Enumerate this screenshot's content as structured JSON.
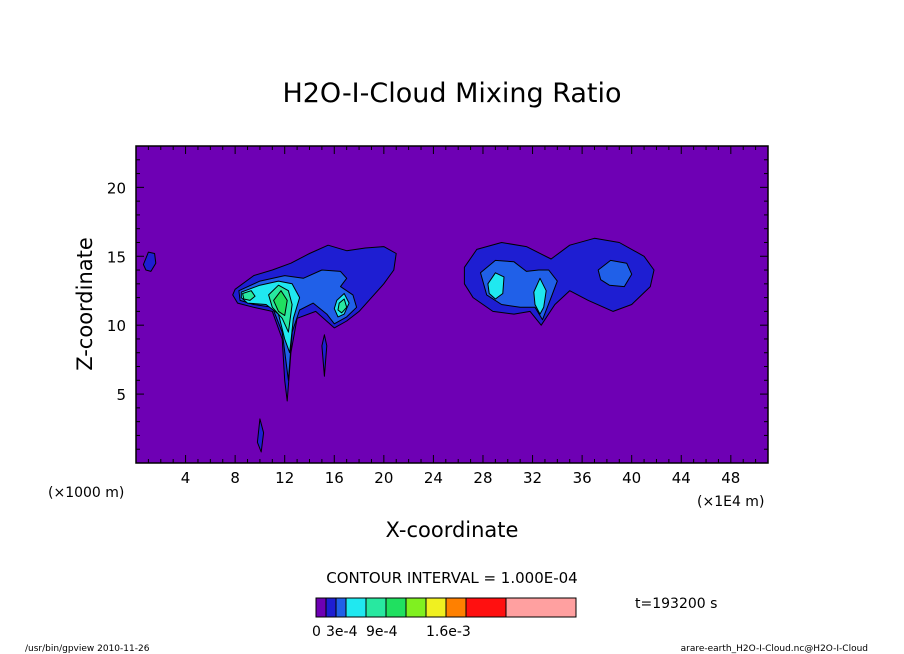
{
  "chart_data": {
    "type": "contour",
    "title": "H2O-I-Cloud Mixing Ratio",
    "xlabel": "X-coordinate",
    "ylabel": "Z-coordinate",
    "x_unit_left": "(×1000 m)",
    "x_unit_right": "(×1E4 m)",
    "xlim": [
      0,
      51
    ],
    "ylim": [
      0,
      23
    ],
    "x_ticks": [
      4,
      8,
      12,
      16,
      20,
      24,
      28,
      32,
      36,
      40,
      44,
      48
    ],
    "y_ticks": [
      5,
      10,
      15,
      20
    ],
    "background_color": "#6e00b4",
    "contour_interval_label": "CONTOUR INTERVAL = 1.000E-04",
    "time_label": "t=193200 s",
    "colorbar": {
      "colors": [
        "#6e00b4",
        "#1e1ed2",
        "#2060e8",
        "#20e8f0",
        "#28e8a0",
        "#20e060",
        "#80f020",
        "#f0f020",
        "#ff8000",
        "#ff1010",
        "#ffa0a0"
      ],
      "labels": [
        {
          "text": "0",
          "index": 0
        },
        {
          "text": "3e-4",
          "index": 1
        },
        {
          "text": "9e-4",
          "index": 4
        },
        {
          "text": "1.6e-3",
          "index": 7
        }
      ]
    },
    "regions": [
      {
        "level": 1,
        "points": [
          [
            8,
            12.6
          ],
          [
            9.5,
            13.6
          ],
          [
            11,
            14
          ],
          [
            12.5,
            14.5
          ],
          [
            14,
            15.2
          ],
          [
            15.5,
            15.8
          ],
          [
            17,
            15.4
          ],
          [
            18.5,
            15.6
          ],
          [
            20,
            15.7
          ],
          [
            21,
            15.2
          ],
          [
            20.8,
            14
          ],
          [
            20,
            13
          ],
          [
            19,
            12
          ],
          [
            18,
            11
          ],
          [
            17,
            10.3
          ],
          [
            16,
            9.8
          ],
          [
            15.5,
            10.2
          ],
          [
            14.5,
            11
          ],
          [
            13,
            10.5
          ],
          [
            12.5,
            8
          ],
          [
            12.2,
            4.5
          ],
          [
            12,
            6
          ],
          [
            11.8,
            9
          ],
          [
            11,
            11
          ],
          [
            9.5,
            11.3
          ],
          [
            8.2,
            11.6
          ],
          [
            7.8,
            12.2
          ]
        ]
      },
      {
        "level": 2,
        "points": [
          [
            8.3,
            12.5
          ],
          [
            10,
            13.2
          ],
          [
            12,
            13.6
          ],
          [
            13.5,
            13.4
          ],
          [
            15,
            14
          ],
          [
            16.5,
            13.9
          ],
          [
            17,
            13.4
          ],
          [
            16.5,
            12.8
          ],
          [
            17.5,
            12.2
          ],
          [
            17.8,
            11.3
          ],
          [
            17,
            10.6
          ],
          [
            16,
            10.1
          ],
          [
            15.4,
            10.8
          ],
          [
            14.3,
            11.6
          ],
          [
            13.2,
            11.1
          ],
          [
            12.6,
            9.5
          ],
          [
            12.3,
            6
          ],
          [
            11.8,
            9.5
          ],
          [
            11,
            11.3
          ],
          [
            9.5,
            11.5
          ],
          [
            8.4,
            11.8
          ]
        ]
      },
      {
        "level": 3,
        "points": [
          [
            8.5,
            12.4
          ],
          [
            10,
            12.9
          ],
          [
            11.5,
            13.2
          ],
          [
            12.6,
            13
          ],
          [
            13.2,
            12
          ],
          [
            12.7,
            10.5
          ],
          [
            12.4,
            8
          ],
          [
            12,
            9
          ],
          [
            11.5,
            10.8
          ],
          [
            10.5,
            11.5
          ],
          [
            9,
            11.6
          ],
          [
            8.5,
            12
          ]
        ]
      },
      {
        "level": 4,
        "points": [
          [
            10.7,
            12.2
          ],
          [
            11.5,
            12.9
          ],
          [
            12.3,
            12.5
          ],
          [
            12.6,
            11.5
          ],
          [
            12.3,
            9.5
          ],
          [
            11.8,
            10.5
          ],
          [
            11,
            11.3
          ]
        ]
      },
      {
        "level": 5,
        "points": [
          [
            11.1,
            11.8
          ],
          [
            11.7,
            12.5
          ],
          [
            12.2,
            11.8
          ],
          [
            12,
            10.7
          ],
          [
            11.5,
            11
          ]
        ]
      },
      {
        "level": 4,
        "points": [
          [
            8.6,
            12.3
          ],
          [
            9.3,
            12.5
          ],
          [
            9.6,
            12.1
          ],
          [
            9.2,
            11.8
          ],
          [
            8.7,
            11.9
          ]
        ]
      },
      {
        "level": 3,
        "points": [
          [
            16.2,
            11.8
          ],
          [
            16.8,
            12.3
          ],
          [
            17.2,
            11.6
          ],
          [
            16.8,
            10.8
          ],
          [
            16.3,
            10.6
          ],
          [
            16,
            11.2
          ]
        ]
      },
      {
        "level": 4,
        "points": [
          [
            16.4,
            11.6
          ],
          [
            16.8,
            11.9
          ],
          [
            17,
            11.3
          ],
          [
            16.6,
            10.9
          ],
          [
            16.3,
            11.1
          ]
        ]
      },
      {
        "level": 1,
        "points": [
          [
            26.5,
            14.2
          ],
          [
            27.5,
            15.5
          ],
          [
            29.5,
            16
          ],
          [
            31.5,
            15.7
          ],
          [
            33.5,
            14.8
          ],
          [
            35,
            15.8
          ],
          [
            37,
            16.3
          ],
          [
            39,
            16
          ],
          [
            41,
            15
          ],
          [
            41.8,
            14
          ],
          [
            41.5,
            12.8
          ],
          [
            40,
            11.5
          ],
          [
            38.5,
            11
          ],
          [
            36.5,
            11.8
          ],
          [
            35,
            12.5
          ],
          [
            33.8,
            11.5
          ],
          [
            32.7,
            10
          ],
          [
            31.8,
            11
          ],
          [
            30.5,
            10.8
          ],
          [
            28.8,
            11
          ],
          [
            27.2,
            12
          ],
          [
            26.5,
            13
          ]
        ]
      },
      {
        "level": 2,
        "points": [
          [
            27.8,
            13.8
          ],
          [
            29,
            14.7
          ],
          [
            30.5,
            14.6
          ],
          [
            31.5,
            13.9
          ],
          [
            32.5,
            14
          ],
          [
            33.3,
            14
          ],
          [
            34,
            13.2
          ],
          [
            33.5,
            12
          ],
          [
            32.8,
            10.4
          ],
          [
            32.2,
            11.3
          ],
          [
            31,
            11.3
          ],
          [
            29.5,
            11.5
          ],
          [
            28.3,
            12.2
          ]
        ]
      },
      {
        "level": 3,
        "points": [
          [
            28.4,
            13
          ],
          [
            29,
            13.8
          ],
          [
            29.7,
            13.5
          ],
          [
            29.6,
            12.3
          ],
          [
            29,
            11.9
          ],
          [
            28.5,
            12.3
          ]
        ]
      },
      {
        "level": 3,
        "points": [
          [
            32.1,
            12.4
          ],
          [
            32.6,
            13.4
          ],
          [
            33.1,
            12.5
          ],
          [
            32.9,
            11.3
          ],
          [
            32.6,
            10.8
          ],
          [
            32.2,
            11.5
          ]
        ]
      },
      {
        "level": 2,
        "points": [
          [
            37.3,
            14
          ],
          [
            38.3,
            14.7
          ],
          [
            39.6,
            14.5
          ],
          [
            40,
            13.7
          ],
          [
            39.4,
            12.8
          ],
          [
            38.2,
            12.9
          ],
          [
            37.5,
            13.3
          ]
        ]
      },
      {
        "level": 1,
        "points": [
          [
            0.6,
            14.4
          ],
          [
            1,
            15.3
          ],
          [
            1.5,
            15.2
          ],
          [
            1.6,
            14.5
          ],
          [
            1.2,
            13.9
          ],
          [
            0.8,
            14
          ]
        ]
      },
      {
        "level": 1,
        "points": [
          [
            15,
            8.5
          ],
          [
            15.2,
            9.3
          ],
          [
            15.4,
            8.5
          ],
          [
            15.2,
            6.3
          ]
        ]
      },
      {
        "level": 1,
        "points": [
          [
            9.8,
            1.5
          ],
          [
            10,
            3.2
          ],
          [
            10.3,
            2.2
          ],
          [
            10.1,
            0.8
          ]
        ]
      }
    ]
  },
  "footer": {
    "left": "/usr/bin/gpview  2010-11-26",
    "right": "arare-earth_H2O-I-Cloud.nc@H2O-I-Cloud"
  }
}
